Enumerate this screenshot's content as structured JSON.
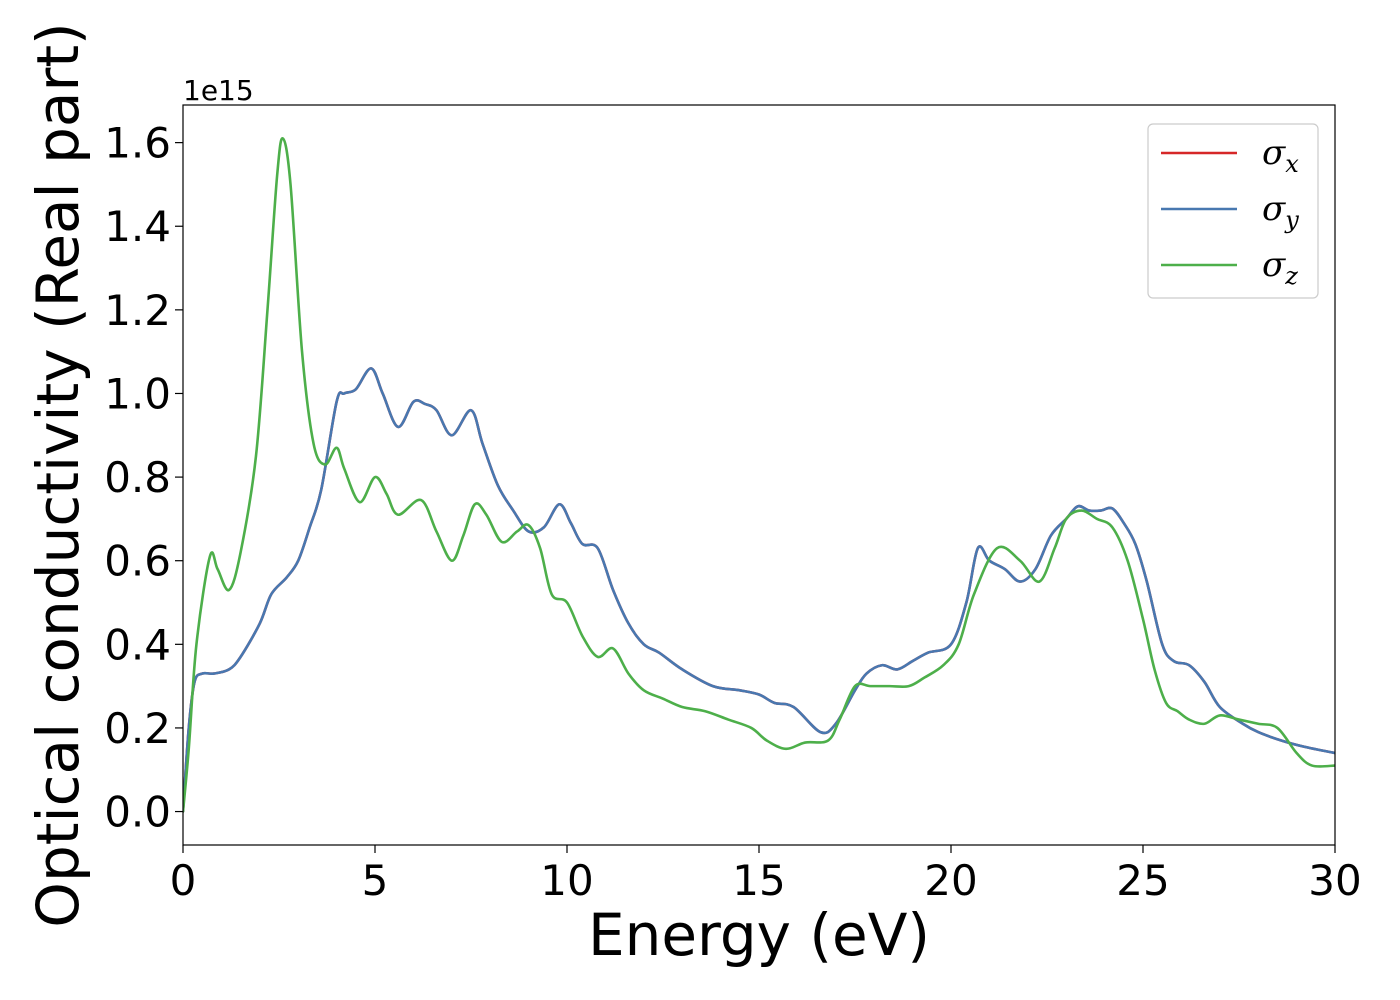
{
  "chart_data": {
    "type": "line",
    "title": "",
    "xlabel": "Energy (eV)",
    "ylabel": "Optical conductivity (Real part)",
    "y_offset_label": "1e15",
    "xlim": [
      0,
      30
    ],
    "ylim": [
      -0.08,
      1.69
    ],
    "x_ticks": [
      0,
      5,
      10,
      15,
      20,
      25,
      30
    ],
    "x_tick_labels": [
      "0",
      "5",
      "10",
      "15",
      "20",
      "25",
      "30"
    ],
    "y_ticks": [
      0.0,
      0.2,
      0.4,
      0.6,
      0.8,
      1.0,
      1.2,
      1.4,
      1.6
    ],
    "y_tick_labels": [
      "0.0",
      "0.2",
      "0.4",
      "0.6",
      "0.8",
      "1.0",
      "1.2",
      "1.4",
      "1.6"
    ],
    "grid": false,
    "legend_position": "top-right",
    "series": [
      {
        "name": "σx",
        "symbol": "σ",
        "subscript": "x",
        "color": "#d62728",
        "x": [
          0,
          0.15,
          0.3,
          0.5,
          0.8,
          1.2,
          1.5,
          2.0,
          2.3,
          2.7,
          3.0,
          3.3,
          3.6,
          4.0,
          4.2,
          4.5,
          4.9,
          5.2,
          5.6,
          6.0,
          6.3,
          6.6,
          7.0,
          7.5,
          7.8,
          8.2,
          8.6,
          9.0,
          9.4,
          9.8,
          10.1,
          10.4,
          10.8,
          11.2,
          11.6,
          12.0,
          12.4,
          13.0,
          13.8,
          14.5,
          15.0,
          15.4,
          15.9,
          16.6,
          17.0,
          17.5,
          17.8,
          18.2,
          18.6,
          19.0,
          19.4,
          20.0,
          20.4,
          20.7,
          21.0,
          21.4,
          21.8,
          22.2,
          22.6,
          23.0,
          23.3,
          23.6,
          23.9,
          24.2,
          24.5,
          24.8,
          25.1,
          25.5,
          25.8,
          26.2,
          26.6,
          27.0,
          27.6,
          28.0,
          28.6,
          29.2,
          30.0
        ],
        "values": [
          0.0,
          0.2,
          0.31,
          0.33,
          0.33,
          0.34,
          0.37,
          0.45,
          0.52,
          0.56,
          0.6,
          0.68,
          0.77,
          0.98,
          1.0,
          1.01,
          1.06,
          1.0,
          0.92,
          0.98,
          0.975,
          0.96,
          0.9,
          0.96,
          0.88,
          0.78,
          0.72,
          0.67,
          0.68,
          0.735,
          0.69,
          0.64,
          0.63,
          0.53,
          0.45,
          0.4,
          0.38,
          0.34,
          0.3,
          0.29,
          0.28,
          0.26,
          0.25,
          0.19,
          0.21,
          0.29,
          0.33,
          0.35,
          0.34,
          0.36,
          0.38,
          0.4,
          0.5,
          0.63,
          0.6,
          0.58,
          0.55,
          0.58,
          0.66,
          0.7,
          0.73,
          0.72,
          0.72,
          0.725,
          0.69,
          0.64,
          0.55,
          0.4,
          0.36,
          0.35,
          0.31,
          0.25,
          0.21,
          0.19,
          0.17,
          0.155,
          0.14
        ]
      },
      {
        "name": "σy",
        "symbol": "σ",
        "subscript": "y",
        "color": "#4878b0",
        "x": [
          0,
          0.15,
          0.3,
          0.5,
          0.8,
          1.2,
          1.5,
          2.0,
          2.3,
          2.7,
          3.0,
          3.3,
          3.6,
          4.0,
          4.2,
          4.5,
          4.9,
          5.2,
          5.6,
          6.0,
          6.3,
          6.6,
          7.0,
          7.5,
          7.8,
          8.2,
          8.6,
          9.0,
          9.4,
          9.8,
          10.1,
          10.4,
          10.8,
          11.2,
          11.6,
          12.0,
          12.4,
          13.0,
          13.8,
          14.5,
          15.0,
          15.4,
          15.9,
          16.6,
          17.0,
          17.5,
          17.8,
          18.2,
          18.6,
          19.0,
          19.4,
          20.0,
          20.4,
          20.7,
          21.0,
          21.4,
          21.8,
          22.2,
          22.6,
          23.0,
          23.3,
          23.6,
          23.9,
          24.2,
          24.5,
          24.8,
          25.1,
          25.5,
          25.8,
          26.2,
          26.6,
          27.0,
          27.6,
          28.0,
          28.6,
          29.2,
          30.0
        ],
        "values": [
          0.0,
          0.2,
          0.31,
          0.33,
          0.33,
          0.34,
          0.37,
          0.45,
          0.52,
          0.56,
          0.6,
          0.68,
          0.77,
          0.98,
          1.0,
          1.01,
          1.06,
          1.0,
          0.92,
          0.98,
          0.975,
          0.96,
          0.9,
          0.96,
          0.88,
          0.78,
          0.72,
          0.67,
          0.68,
          0.735,
          0.69,
          0.64,
          0.63,
          0.53,
          0.45,
          0.4,
          0.38,
          0.34,
          0.3,
          0.29,
          0.28,
          0.26,
          0.25,
          0.19,
          0.21,
          0.29,
          0.33,
          0.35,
          0.34,
          0.36,
          0.38,
          0.4,
          0.5,
          0.63,
          0.6,
          0.58,
          0.55,
          0.58,
          0.66,
          0.7,
          0.73,
          0.72,
          0.72,
          0.725,
          0.69,
          0.64,
          0.55,
          0.4,
          0.36,
          0.35,
          0.31,
          0.25,
          0.21,
          0.19,
          0.17,
          0.155,
          0.14
        ]
      },
      {
        "name": "σz",
        "symbol": "σ",
        "subscript": "z",
        "color": "#4daf4a",
        "x": [
          0,
          0.15,
          0.35,
          0.7,
          0.9,
          1.2,
          1.5,
          1.9,
          2.2,
          2.45,
          2.6,
          2.8,
          3.1,
          3.4,
          3.7,
          4.0,
          4.2,
          4.6,
          5.0,
          5.3,
          5.6,
          6.2,
          6.6,
          7.0,
          7.3,
          7.6,
          7.9,
          8.3,
          8.7,
          9.0,
          9.3,
          9.6,
          10.0,
          10.4,
          10.8,
          11.2,
          11.6,
          12.0,
          12.5,
          13.0,
          13.6,
          14.2,
          14.8,
          15.2,
          15.7,
          16.2,
          16.8,
          17.1,
          17.5,
          17.9,
          18.4,
          18.9,
          19.3,
          19.8,
          20.2,
          20.6,
          21.2,
          21.8,
          22.3,
          22.7,
          23.0,
          23.4,
          23.8,
          24.2,
          24.6,
          25.0,
          25.3,
          25.6,
          25.9,
          26.2,
          26.6,
          27.0,
          27.5,
          28.0,
          28.5,
          29.0,
          29.4,
          30.0
        ],
        "values": [
          0.0,
          0.15,
          0.4,
          0.61,
          0.58,
          0.53,
          0.62,
          0.85,
          1.2,
          1.52,
          1.61,
          1.5,
          1.1,
          0.88,
          0.83,
          0.87,
          0.82,
          0.74,
          0.8,
          0.76,
          0.71,
          0.745,
          0.67,
          0.6,
          0.66,
          0.735,
          0.71,
          0.645,
          0.67,
          0.685,
          0.63,
          0.52,
          0.5,
          0.42,
          0.37,
          0.39,
          0.33,
          0.29,
          0.27,
          0.25,
          0.24,
          0.22,
          0.2,
          0.17,
          0.15,
          0.165,
          0.17,
          0.22,
          0.3,
          0.3,
          0.3,
          0.3,
          0.32,
          0.35,
          0.4,
          0.52,
          0.63,
          0.6,
          0.55,
          0.63,
          0.7,
          0.72,
          0.7,
          0.68,
          0.6,
          0.46,
          0.34,
          0.26,
          0.24,
          0.22,
          0.21,
          0.23,
          0.22,
          0.21,
          0.2,
          0.14,
          0.11,
          0.11
        ]
      }
    ]
  }
}
